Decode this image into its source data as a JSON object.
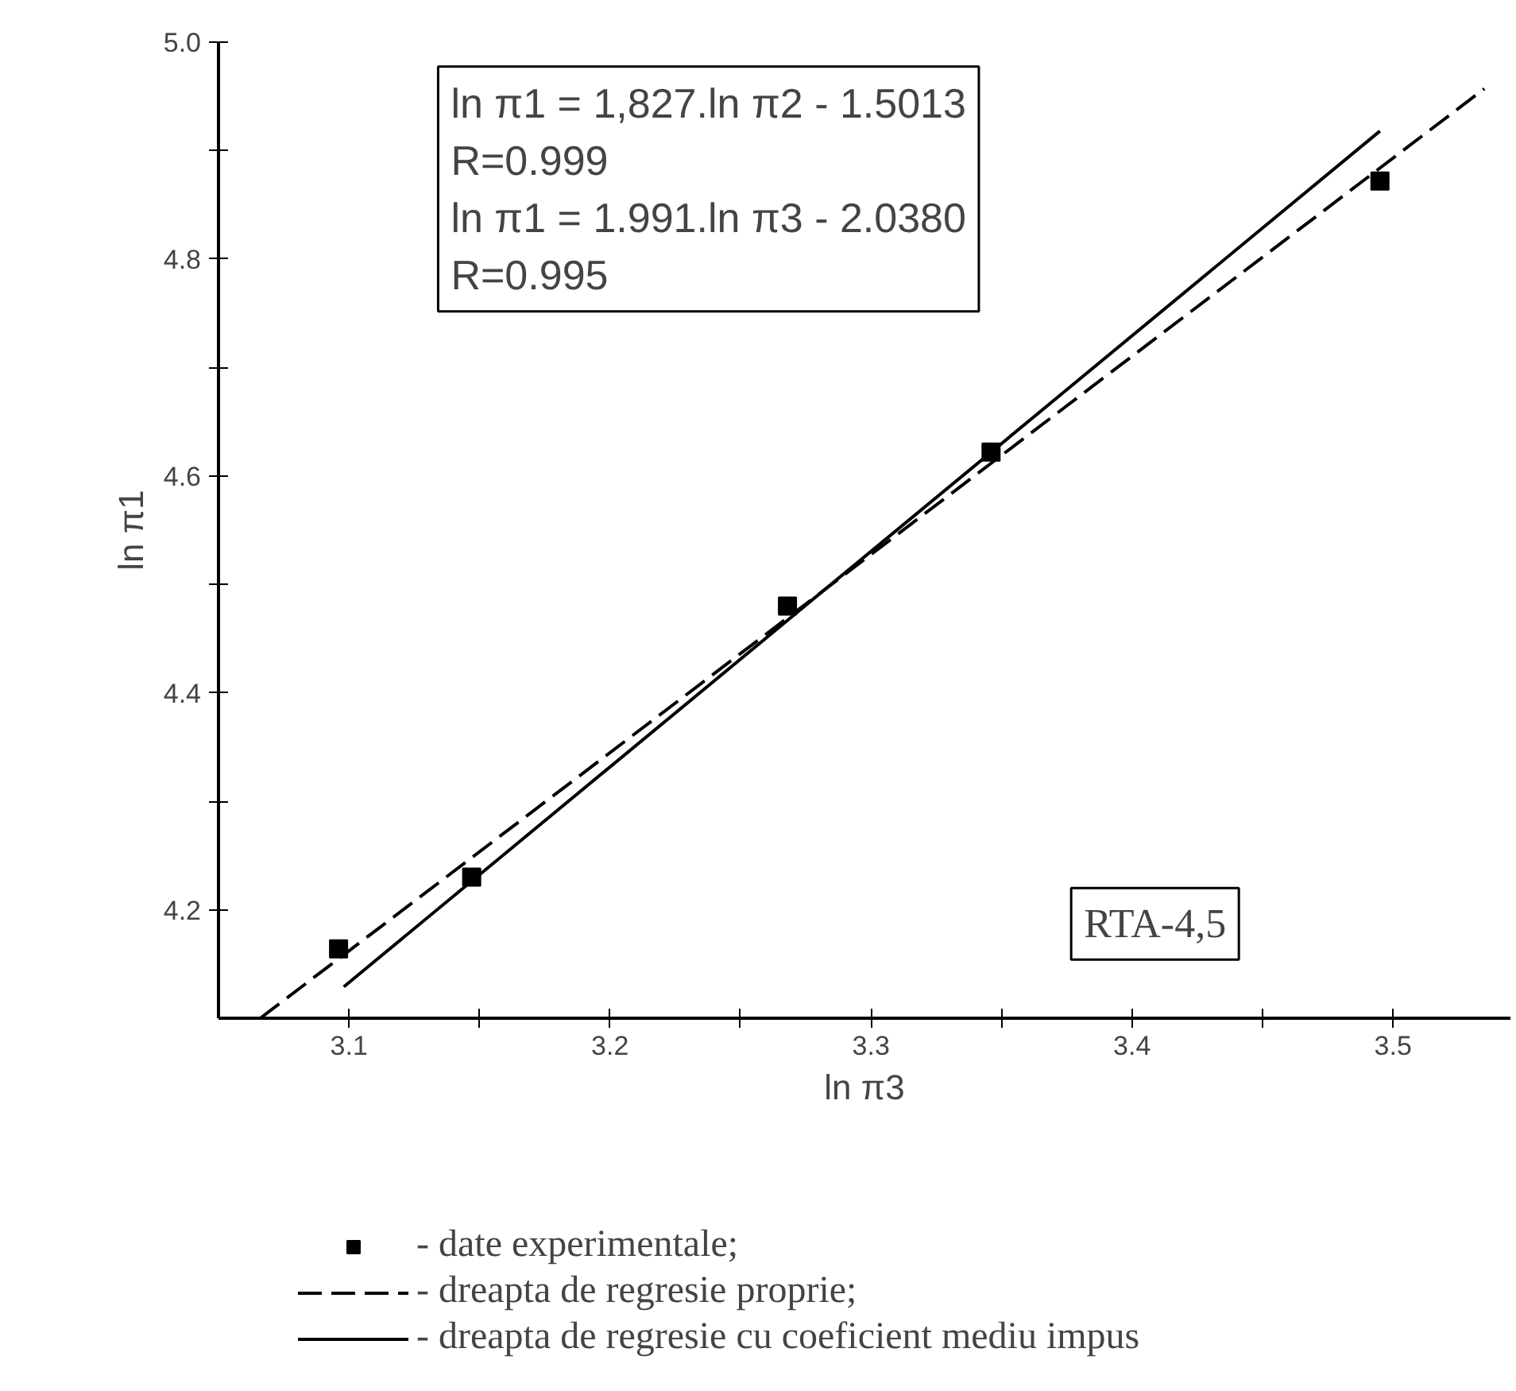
{
  "chart_data": {
    "type": "scatter",
    "xlabel": "ln π3",
    "ylabel": "ln π1",
    "xlim": [
      3.05,
      3.545
    ],
    "ylim": [
      4.1,
      5.0
    ],
    "xticks": [
      3.1,
      {
        "value": 3.15,
        "label": null
      },
      3.2,
      {
        "value": 3.25,
        "label": null
      },
      3.3,
      {
        "value": 3.35,
        "label": null
      },
      3.4,
      {
        "value": 3.45,
        "label": null
      },
      3.5
    ],
    "yticks": [
      4.2,
      {
        "value": 4.3,
        "label": null
      },
      4.4,
      {
        "value": 4.5,
        "label": null
      },
      4.6,
      {
        "value": 4.7,
        "label": null
      },
      4.8,
      {
        "value": 4.9,
        "label": null
      },
      {
        "value": 5.0,
        "label": "5.0"
      }
    ],
    "grid": false,
    "legend": "bottom",
    "series": [
      {
        "name": "- date experimentale;",
        "marker": "square",
        "color": "#000000",
        "x": [
          3.096,
          3.147,
          3.268,
          3.346,
          3.495
        ],
        "values": [
          4.164,
          4.23,
          4.48,
          4.622,
          4.872
        ]
      },
      {
        "name": "- dreapta de regresie proprie;",
        "type": "line",
        "line_style": "dashed",
        "marker": "none",
        "color": "#000000",
        "x": [
          3.066,
          3.535
        ],
        "values": [
          4.1,
          4.957
        ]
      },
      {
        "name": "- dreapta de regresie cu coeficient mediu impus",
        "type": "line",
        "line_style": "solid",
        "marker": "none",
        "color": "#000000",
        "x": [
          3.098,
          3.495
        ],
        "values": [
          4.129,
          4.918
        ]
      }
    ],
    "annotations": [
      "ln π1 = 1,827.ln π2 - 1.5013\n                        R=0.999\nln π1 = 1.991.ln π3 - 2.0380\n                        R=0.995",
      "RTA-4,5"
    ]
  }
}
